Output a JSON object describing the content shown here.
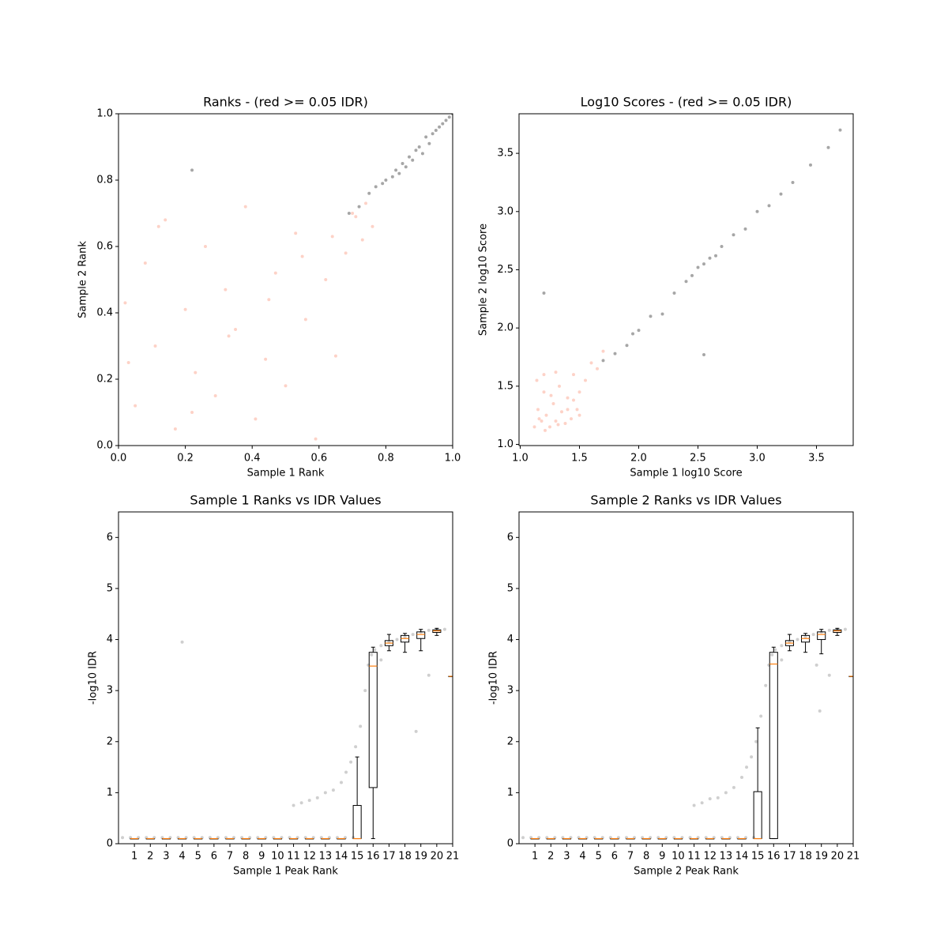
{
  "chart_data": [
    {
      "type": "scatter",
      "title": "Ranks - (red >= 0.05 IDR)",
      "xlabel": "Sample 1 Rank",
      "ylabel": "Sample 2 Rank",
      "xlim": [
        0,
        1
      ],
      "ylim": [
        0,
        1
      ],
      "xticks": [
        {
          "value": 0,
          "label": "0.0"
        },
        0.2,
        0.4,
        0.6,
        0.8,
        {
          "value": 1,
          "label": "1.0"
        }
      ],
      "yticks": [
        {
          "value": 0,
          "label": "0.0"
        },
        0.2,
        0.4,
        0.6,
        0.8,
        {
          "value": 1,
          "label": "1.0"
        }
      ],
      "series": [
        {
          "color": "#fa7d5e",
          "alpha": 0.35,
          "x": [
            0.02,
            0.05,
            0.08,
            0.11,
            0.14,
            0.17,
            0.2,
            0.23,
            0.26,
            0.29,
            0.32,
            0.35,
            0.38,
            0.41,
            0.44,
            0.47,
            0.5,
            0.53,
            0.56,
            0.59,
            0.62,
            0.65,
            0.68,
            0.71,
            0.74,
            0.03,
            0.12,
            0.22,
            0.33,
            0.45,
            0.55,
            0.64,
            0.7,
            0.73,
            0.76
          ],
          "values": [
            0.43,
            0.12,
            0.55,
            0.3,
            0.68,
            0.05,
            0.41,
            0.22,
            0.6,
            0.15,
            0.47,
            0.35,
            0.72,
            0.08,
            0.26,
            0.52,
            0.18,
            0.64,
            0.38,
            0.02,
            0.5,
            0.27,
            0.58,
            0.69,
            0.73,
            0.25,
            0.66,
            0.1,
            0.33,
            0.44,
            0.57,
            0.63,
            0.7,
            0.62,
            0.66
          ]
        },
        {
          "color": "#000000",
          "alpha": 0.35,
          "x": [
            0.69,
            0.72,
            0.75,
            0.77,
            0.79,
            0.8,
            0.82,
            0.83,
            0.84,
            0.85,
            0.86,
            0.87,
            0.88,
            0.89,
            0.9,
            0.91,
            0.92,
            0.93,
            0.94,
            0.95,
            0.96,
            0.97,
            0.98,
            0.99,
            1.0,
            0.22
          ],
          "values": [
            0.7,
            0.72,
            0.76,
            0.78,
            0.79,
            0.8,
            0.81,
            0.83,
            0.82,
            0.85,
            0.84,
            0.87,
            0.86,
            0.89,
            0.9,
            0.88,
            0.93,
            0.91,
            0.94,
            0.95,
            0.96,
            0.97,
            0.98,
            0.99,
            1.0,
            0.83
          ]
        }
      ]
    },
    {
      "type": "scatter",
      "title": "Log10 Scores - (red >= 0.05 IDR)",
      "xlabel": "Sample 1 log10 Score",
      "ylabel": "Sample 2 log10 Score",
      "xlim": [
        0.99,
        3.81
      ],
      "ylim": [
        0.99,
        3.84
      ],
      "xticks": [
        {
          "value": 1,
          "label": "1.0"
        },
        1.5,
        {
          "value": 2,
          "label": "2.0"
        },
        2.5,
        {
          "value": 3,
          "label": "3.0"
        },
        3.5
      ],
      "yticks": [
        {
          "value": 1,
          "label": "1.0"
        },
        1.5,
        {
          "value": 2,
          "label": "2.0"
        },
        2.5,
        {
          "value": 3,
          "label": "3.0"
        },
        3.5
      ],
      "series": [
        {
          "color": "#fa7d5e",
          "alpha": 0.35,
          "x": [
            1.12,
            1.15,
            1.18,
            1.2,
            1.22,
            1.25,
            1.28,
            1.3,
            1.33,
            1.35,
            1.38,
            1.4,
            1.43,
            1.45,
            1.48,
            1.5,
            1.55,
            1.6,
            1.65,
            1.7,
            1.14,
            1.2,
            1.26,
            1.32,
            1.4,
            1.5,
            1.21,
            1.16,
            1.3,
            1.45
          ],
          "values": [
            1.15,
            1.3,
            1.2,
            1.45,
            1.25,
            1.15,
            1.35,
            1.2,
            1.5,
            1.28,
            1.18,
            1.4,
            1.22,
            1.6,
            1.3,
            1.45,
            1.55,
            1.7,
            1.65,
            1.8,
            1.55,
            1.6,
            1.42,
            1.17,
            1.3,
            1.25,
            1.12,
            1.22,
            1.62,
            1.38
          ]
        },
        {
          "color": "#000000",
          "alpha": 0.35,
          "x": [
            1.7,
            1.8,
            1.9,
            1.95,
            2.0,
            2.1,
            2.2,
            2.3,
            2.4,
            2.45,
            2.5,
            2.55,
            2.6,
            2.65,
            2.7,
            2.8,
            2.9,
            3.0,
            3.1,
            3.2,
            3.3,
            3.45,
            3.6,
            3.7,
            1.2,
            2.55
          ],
          "values": [
            1.72,
            1.78,
            1.85,
            1.95,
            1.98,
            2.1,
            2.12,
            2.3,
            2.4,
            2.45,
            2.52,
            2.55,
            2.6,
            2.62,
            2.7,
            2.8,
            2.85,
            3.0,
            3.05,
            3.15,
            3.25,
            3.4,
            3.55,
            3.7,
            2.3,
            1.77
          ]
        }
      ]
    },
    {
      "type": "box",
      "title": "Sample 1 Ranks vs IDR Values",
      "xlabel": "Sample 1 Peak Rank",
      "ylabel": "-log10 IDR",
      "xlim": [
        0,
        21
      ],
      "ylim": [
        0,
        6.5
      ],
      "xticks": [
        1,
        2,
        3,
        4,
        5,
        6,
        7,
        8,
        9,
        10,
        11,
        12,
        13,
        14,
        15,
        16,
        17,
        18,
        19,
        20,
        21
      ],
      "yticks": [
        0,
        1,
        2,
        3,
        4,
        5,
        6
      ],
      "median_color": "#ff7f0e",
      "points": {
        "color": "#606060",
        "alpha": 0.3,
        "x": [
          0.25,
          0.75,
          1.25,
          1.75,
          2.25,
          2.75,
          3.25,
          3.75,
          4.25,
          4.75,
          5.25,
          5.75,
          6.25,
          6.75,
          7.25,
          7.75,
          8.25,
          8.75,
          9.25,
          9.75,
          10.25,
          10.75,
          11.25,
          11.75,
          12.25,
          12.75,
          13.25,
          13.75,
          14.25,
          14.75,
          11,
          11.5,
          12,
          12.5,
          13,
          13.5,
          14,
          14.3,
          14.6,
          14.9,
          15.2,
          15.5,
          15.7,
          15.9,
          16.1,
          16.5,
          17,
          17.5,
          18,
          18.5,
          19,
          19.5,
          20,
          20.5,
          4,
          16.5,
          19.5,
          18.7
        ],
        "values": [
          0.12,
          0.12,
          0.12,
          0.12,
          0.12,
          0.12,
          0.12,
          0.12,
          0.12,
          0.12,
          0.12,
          0.12,
          0.12,
          0.12,
          0.12,
          0.12,
          0.12,
          0.12,
          0.12,
          0.12,
          0.12,
          0.12,
          0.12,
          0.12,
          0.12,
          0.12,
          0.12,
          0.12,
          0.12,
          0.12,
          0.75,
          0.8,
          0.85,
          0.9,
          1.0,
          1.05,
          1.2,
          1.4,
          1.6,
          1.9,
          2.3,
          3.0,
          3.5,
          3.7,
          3.8,
          3.88,
          3.95,
          4.0,
          4.05,
          4.1,
          4.15,
          4.18,
          4.2,
          4.2,
          3.95,
          3.6,
          3.3,
          2.2
        ]
      },
      "boxes": [
        {
          "x": 1,
          "whislo": 0.1,
          "q1": 0.1,
          "med": 0.1,
          "q3": 0.1,
          "whishi": 0.1
        },
        {
          "x": 2,
          "whislo": 0.1,
          "q1": 0.1,
          "med": 0.1,
          "q3": 0.1,
          "whishi": 0.1
        },
        {
          "x": 3,
          "whislo": 0.1,
          "q1": 0.1,
          "med": 0.1,
          "q3": 0.1,
          "whishi": 0.1
        },
        {
          "x": 4,
          "whislo": 0.1,
          "q1": 0.1,
          "med": 0.1,
          "q3": 0.1,
          "whishi": 0.1
        },
        {
          "x": 5,
          "whislo": 0.1,
          "q1": 0.1,
          "med": 0.1,
          "q3": 0.1,
          "whishi": 0.1
        },
        {
          "x": 6,
          "whislo": 0.1,
          "q1": 0.1,
          "med": 0.1,
          "q3": 0.1,
          "whishi": 0.1
        },
        {
          "x": 7,
          "whislo": 0.1,
          "q1": 0.1,
          "med": 0.1,
          "q3": 0.1,
          "whishi": 0.1
        },
        {
          "x": 8,
          "whislo": 0.1,
          "q1": 0.1,
          "med": 0.1,
          "q3": 0.1,
          "whishi": 0.1
        },
        {
          "x": 9,
          "whislo": 0.1,
          "q1": 0.1,
          "med": 0.1,
          "q3": 0.1,
          "whishi": 0.1
        },
        {
          "x": 10,
          "whislo": 0.1,
          "q1": 0.1,
          "med": 0.1,
          "q3": 0.1,
          "whishi": 0.1
        },
        {
          "x": 11,
          "whislo": 0.1,
          "q1": 0.1,
          "med": 0.1,
          "q3": 0.1,
          "whishi": 0.1
        },
        {
          "x": 12,
          "whislo": 0.1,
          "q1": 0.1,
          "med": 0.1,
          "q3": 0.1,
          "whishi": 0.1
        },
        {
          "x": 13,
          "whislo": 0.1,
          "q1": 0.1,
          "med": 0.1,
          "q3": 0.1,
          "whishi": 0.1
        },
        {
          "x": 14,
          "whislo": 0.1,
          "q1": 0.1,
          "med": 0.1,
          "q3": 0.1,
          "whishi": 0.1
        },
        {
          "x": 15,
          "whislo": 0.1,
          "q1": 0.1,
          "med": 0.1,
          "q3": 0.75,
          "whishi": 1.7
        },
        {
          "x": 16,
          "whislo": 0.1,
          "q1": 1.1,
          "med": 3.48,
          "q3": 3.75,
          "whishi": 3.85
        },
        {
          "x": 17,
          "whislo": 3.78,
          "q1": 3.88,
          "med": 3.93,
          "q3": 3.98,
          "whishi": 4.1
        },
        {
          "x": 18,
          "whislo": 3.75,
          "q1": 3.95,
          "med": 4.02,
          "q3": 4.08,
          "whishi": 4.12
        },
        {
          "x": 19,
          "whislo": 3.78,
          "q1": 4.02,
          "med": 4.1,
          "q3": 4.15,
          "whishi": 4.2
        },
        {
          "x": 20,
          "whislo": 4.08,
          "q1": 4.14,
          "med": 4.17,
          "q3": 4.19,
          "whishi": 4.22
        },
        {
          "x": 21,
          "whislo": 3.28,
          "q1": 3.28,
          "med": 3.28,
          "q3": 3.28,
          "whishi": 3.28
        }
      ]
    },
    {
      "type": "box",
      "title": "Sample 2 Ranks vs IDR Values",
      "xlabel": "Sample 2 Peak Rank",
      "ylabel": "-log10 IDR",
      "xlim": [
        0,
        21
      ],
      "ylim": [
        0,
        6.5
      ],
      "xticks": [
        1,
        2,
        3,
        4,
        5,
        6,
        7,
        8,
        9,
        10,
        11,
        12,
        13,
        14,
        15,
        16,
        17,
        18,
        19,
        20,
        21
      ],
      "yticks": [
        0,
        1,
        2,
        3,
        4,
        5,
        6
      ],
      "median_color": "#ff7f0e",
      "points": {
        "color": "#606060",
        "alpha": 0.3,
        "x": [
          0.25,
          0.75,
          1.25,
          1.75,
          2.25,
          2.75,
          3.25,
          3.75,
          4.25,
          4.75,
          5.25,
          5.75,
          6.25,
          6.75,
          7.25,
          7.75,
          8.25,
          8.75,
          9.25,
          9.75,
          10.25,
          10.75,
          11.25,
          11.75,
          12.25,
          12.75,
          13.25,
          13.75,
          14.25,
          14.75,
          11,
          11.5,
          12,
          12.5,
          13,
          13.5,
          14,
          14.3,
          14.6,
          14.9,
          15.2,
          15.5,
          15.7,
          15.9,
          16.1,
          16.5,
          17,
          17.5,
          18,
          18.5,
          19,
          19.5,
          20,
          20.5,
          18.9,
          16.5,
          19.5,
          18.7
        ],
        "values": [
          0.12,
          0.12,
          0.12,
          0.12,
          0.12,
          0.12,
          0.12,
          0.12,
          0.12,
          0.12,
          0.12,
          0.12,
          0.12,
          0.12,
          0.12,
          0.12,
          0.12,
          0.12,
          0.12,
          0.12,
          0.12,
          0.12,
          0.12,
          0.12,
          0.12,
          0.12,
          0.12,
          0.12,
          0.12,
          0.12,
          0.75,
          0.8,
          0.88,
          0.9,
          1.0,
          1.1,
          1.3,
          1.5,
          1.7,
          2.0,
          2.5,
          3.1,
          3.5,
          3.7,
          3.8,
          3.88,
          3.95,
          4.0,
          4.05,
          4.1,
          4.15,
          4.18,
          4.2,
          4.2,
          2.6,
          3.6,
          3.3,
          3.5
        ]
      },
      "boxes": [
        {
          "x": 1,
          "whislo": 0.1,
          "q1": 0.1,
          "med": 0.1,
          "q3": 0.1,
          "whishi": 0.1
        },
        {
          "x": 2,
          "whislo": 0.1,
          "q1": 0.1,
          "med": 0.1,
          "q3": 0.1,
          "whishi": 0.1
        },
        {
          "x": 3,
          "whislo": 0.1,
          "q1": 0.1,
          "med": 0.1,
          "q3": 0.1,
          "whishi": 0.1
        },
        {
          "x": 4,
          "whislo": 0.1,
          "q1": 0.1,
          "med": 0.1,
          "q3": 0.1,
          "whishi": 0.1
        },
        {
          "x": 5,
          "whislo": 0.1,
          "q1": 0.1,
          "med": 0.1,
          "q3": 0.1,
          "whishi": 0.1
        },
        {
          "x": 6,
          "whislo": 0.1,
          "q1": 0.1,
          "med": 0.1,
          "q3": 0.1,
          "whishi": 0.1
        },
        {
          "x": 7,
          "whislo": 0.1,
          "q1": 0.1,
          "med": 0.1,
          "q3": 0.1,
          "whishi": 0.1
        },
        {
          "x": 8,
          "whislo": 0.1,
          "q1": 0.1,
          "med": 0.1,
          "q3": 0.1,
          "whishi": 0.1
        },
        {
          "x": 9,
          "whislo": 0.1,
          "q1": 0.1,
          "med": 0.1,
          "q3": 0.1,
          "whishi": 0.1
        },
        {
          "x": 10,
          "whislo": 0.1,
          "q1": 0.1,
          "med": 0.1,
          "q3": 0.1,
          "whishi": 0.1
        },
        {
          "x": 11,
          "whislo": 0.1,
          "q1": 0.1,
          "med": 0.1,
          "q3": 0.1,
          "whishi": 0.1
        },
        {
          "x": 12,
          "whislo": 0.1,
          "q1": 0.1,
          "med": 0.1,
          "q3": 0.1,
          "whishi": 0.1
        },
        {
          "x": 13,
          "whislo": 0.1,
          "q1": 0.1,
          "med": 0.1,
          "q3": 0.1,
          "whishi": 0.1
        },
        {
          "x": 14,
          "whislo": 0.1,
          "q1": 0.1,
          "med": 0.1,
          "q3": 0.1,
          "whishi": 0.1
        },
        {
          "x": 15,
          "whislo": 0.1,
          "q1": 0.1,
          "med": 0.1,
          "q3": 1.02,
          "whishi": 2.27
        },
        {
          "x": 16,
          "whislo": 0.1,
          "q1": 0.1,
          "med": 3.52,
          "q3": 3.75,
          "whishi": 3.85
        },
        {
          "x": 17,
          "whislo": 3.78,
          "q1": 3.88,
          "med": 3.93,
          "q3": 3.98,
          "whishi": 4.1
        },
        {
          "x": 18,
          "whislo": 3.75,
          "q1": 3.95,
          "med": 4.02,
          "q3": 4.08,
          "whishi": 4.12
        },
        {
          "x": 19,
          "whislo": 3.72,
          "q1": 4.0,
          "med": 4.1,
          "q3": 4.15,
          "whishi": 4.2
        },
        {
          "x": 20,
          "whislo": 4.08,
          "q1": 4.14,
          "med": 4.17,
          "q3": 4.19,
          "whishi": 4.22
        },
        {
          "x": 21,
          "whislo": 3.28,
          "q1": 3.28,
          "med": 3.28,
          "q3": 3.28,
          "whishi": 3.28
        }
      ]
    }
  ]
}
